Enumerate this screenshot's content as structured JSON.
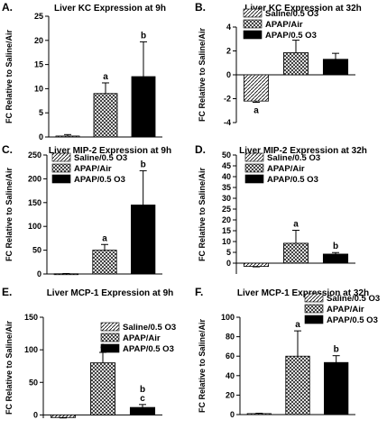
{
  "legend_labels": [
    "Saline/0.5 O3",
    "APAP/Air",
    "APAP/0.5 O3"
  ],
  "ylabel": "FC Relative to Saline/Air",
  "chart_data": [
    {
      "panel": "A.",
      "type": "bar",
      "title": "Liver KC Expression at 9h",
      "ylabel": "FC Relative to Saline/Air",
      "categories": [
        "Saline/0.5 O3",
        "APAP/Air",
        "APAP/0.5 O3"
      ],
      "values": [
        0.2,
        9.0,
        12.5
      ],
      "errors": [
        0.3,
        2.2,
        7.2
      ],
      "sig": [
        "",
        "a",
        "b"
      ],
      "ylim": [
        0,
        25
      ],
      "yticks": [
        0,
        5,
        10,
        15,
        20,
        25
      ]
    },
    {
      "panel": "B.",
      "type": "bar",
      "title": "Liver KC Expression at 32h",
      "ylabel": "FC Relative to Saline/Air",
      "categories": [
        "Saline/0.5 O3",
        "APAP/Air",
        "APAP/0.5 O3"
      ],
      "values": [
        -2.2,
        1.85,
        1.3
      ],
      "errors": [
        0.1,
        1.05,
        0.5
      ],
      "sig": [
        "a",
        "",
        ""
      ],
      "ylim": [
        -4,
        4
      ],
      "yticks": [
        -4,
        -2,
        0,
        2,
        4
      ]
    },
    {
      "panel": "C.",
      "type": "bar",
      "title": "Liver MIP-2 Expression at 9h",
      "ylabel": "FC Relative to Saline/Air",
      "categories": [
        "Saline/0.5 O3",
        "APAP/Air",
        "APAP/0.5 O3"
      ],
      "values": [
        0.5,
        50,
        145
      ],
      "errors": [
        0.5,
        12,
        72
      ],
      "sig": [
        "",
        "a",
        "b"
      ],
      "ylim": [
        0,
        250
      ],
      "yticks": [
        0,
        50,
        100,
        150,
        200,
        250
      ]
    },
    {
      "panel": "D.",
      "type": "bar",
      "title": "Liver MIP-2 Expression at 32h",
      "ylabel": "FC Relative to Saline/Air",
      "categories": [
        "Saline/0.5 O3",
        "APAP/Air",
        "APAP/0.5 O3"
      ],
      "values": [
        -1.5,
        9.2,
        4.2
      ],
      "errors": [
        0.2,
        6.0,
        0.7
      ],
      "sig": [
        "",
        "a",
        "b"
      ],
      "ylim": [
        -5,
        50
      ],
      "yticks": [
        0,
        5,
        10,
        15,
        20,
        25,
        30,
        35,
        40,
        45,
        50
      ]
    },
    {
      "panel": "E.",
      "type": "bar",
      "title": "Liver MCP-1 Expression at 9h",
      "ylabel": "FC Relative to Saline/Air",
      "categories": [
        "Saline/0.5 O3",
        "APAP/Air",
        "APAP/0.5 O3"
      ],
      "values": [
        -4,
        80,
        11.5
      ],
      "errors": [
        0.6,
        16,
        4.5
      ],
      "sig": [
        "",
        "a",
        "b\nc"
      ],
      "ylim": [
        -5,
        150
      ],
      "yticks": [
        0,
        50,
        100,
        150
      ]
    },
    {
      "panel": "F.",
      "type": "bar",
      "title": "Liver MCP-1 Expression at 32h",
      "ylabel": "FC Relative to Saline/Air",
      "categories": [
        "Saline/0.5 O3",
        "APAP/Air",
        "APAP/0.5 O3"
      ],
      "values": [
        1,
        60,
        53.5
      ],
      "errors": [
        0.4,
        26,
        7
      ],
      "sig": [
        "",
        "a",
        "b"
      ],
      "ylim": [
        0,
        100
      ],
      "yticks": [
        0,
        20,
        40,
        60,
        80,
        100
      ]
    }
  ]
}
